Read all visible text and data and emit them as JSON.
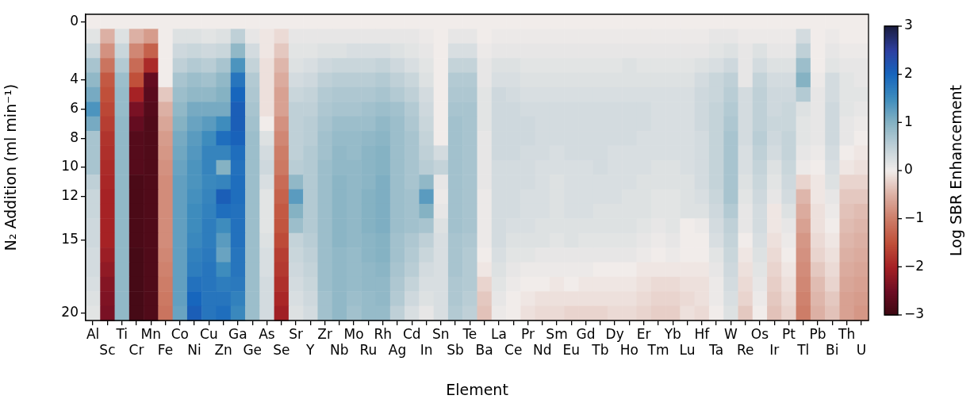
{
  "chart_data": {
    "type": "heatmap",
    "xlabel": "Element",
    "ylabel": "N₂ Addition (ml min⁻¹)",
    "clabel": "Log SBR Enhancement",
    "categories": [
      "Al",
      "Sc",
      "Ti",
      "Cr",
      "Mn",
      "Fe",
      "Co",
      "Ni",
      "Cu",
      "Zn",
      "Ga",
      "Ge",
      "As",
      "Se",
      "Sr",
      "Y",
      "Zr",
      "Nb",
      "Mo",
      "Ru",
      "Rh",
      "Ag",
      "Cd",
      "In",
      "Sn",
      "Sb",
      "Te",
      "Ba",
      "La",
      "Ce",
      "Pr",
      "Nd",
      "Sm",
      "Eu",
      "Gd",
      "Tb",
      "Dy",
      "Ho",
      "Er",
      "Tm",
      "Yb",
      "Lu",
      "Hf",
      "Ta",
      "W",
      "Re",
      "Os",
      "Ir",
      "Pt",
      "Tl",
      "Pb",
      "Bi",
      "Th",
      "U"
    ],
    "y_categories": [
      "0",
      null,
      null,
      null,
      "4",
      null,
      "6",
      null,
      "8",
      null,
      "10",
      null,
      "12",
      null,
      null,
      "15",
      null,
      null,
      null,
      null,
      "20"
    ],
    "clim": [
      -3,
      3
    ],
    "cticks": [
      -3,
      -2,
      -1,
      0,
      1,
      2,
      3
    ],
    "cells": [
      [
        0,
        0,
        0,
        0,
        0,
        0,
        0,
        0,
        0,
        0,
        0,
        0,
        0,
        0,
        0,
        0,
        0,
        0,
        0,
        0,
        0,
        0,
        0,
        0,
        0,
        0,
        0,
        0,
        0,
        0,
        0,
        0,
        0,
        0,
        0,
        0,
        0,
        0,
        0,
        0,
        0,
        0,
        0,
        0,
        0,
        0,
        0,
        0,
        0,
        0,
        0,
        0,
        0,
        0
      ],
      [
        0.15,
        -0.5,
        0.2,
        -0.5,
        -0.7,
        0,
        0.2,
        0.2,
        0.15,
        0.2,
        0.5,
        0.1,
        -0.05,
        -0.15,
        0.1,
        0.1,
        0.1,
        0.1,
        0.1,
        0.1,
        0.1,
        0.1,
        0.1,
        0.05,
        0,
        0.1,
        0.1,
        0,
        0.05,
        0.05,
        0.05,
        0.05,
        0.05,
        0.05,
        0.05,
        0.05,
        0.05,
        0.05,
        0.05,
        0.05,
        0.05,
        0.05,
        0.05,
        0.1,
        0.1,
        0.05,
        0.05,
        0.05,
        0.05,
        0.3,
        0,
        0.05,
        0,
        0
      ],
      [
        0.4,
        -0.8,
        0.4,
        -0.9,
        -1.3,
        0,
        0.35,
        0.4,
        0.35,
        0.4,
        0.9,
        0.3,
        -0.05,
        -0.3,
        0.15,
        0.15,
        0.2,
        0.2,
        0.25,
        0.25,
        0.25,
        0.2,
        0.15,
        0.1,
        0,
        0.25,
        0.25,
        0.05,
        0.1,
        0.1,
        0.1,
        0.1,
        0.1,
        0.1,
        0.1,
        0.1,
        0.1,
        0.1,
        0.1,
        0.1,
        0.1,
        0.1,
        0.1,
        0.15,
        0.2,
        0.1,
        0.2,
        0.1,
        0.1,
        0.5,
        0,
        0.1,
        0.05,
        0.05
      ],
      [
        0.7,
        -1.1,
        0.6,
        -1.2,
        -1.9,
        0,
        0.5,
        0.6,
        0.55,
        0.7,
        1.4,
        0.45,
        -0.1,
        -0.45,
        0.2,
        0.25,
        0.35,
        0.4,
        0.4,
        0.4,
        0.45,
        0.35,
        0.25,
        0.15,
        0,
        0.45,
        0.45,
        0.1,
        0.2,
        0.2,
        0.15,
        0.15,
        0.15,
        0.15,
        0.15,
        0.15,
        0.15,
        0.2,
        0.15,
        0.15,
        0.15,
        0.15,
        0.2,
        0.25,
        0.35,
        0.1,
        0.3,
        0.2,
        0.2,
        0.8,
        0,
        0.15,
        0.1,
        0.1
      ],
      [
        0.9,
        -1.4,
        0.8,
        -1.5,
        -2.6,
        0,
        0.7,
        0.8,
        0.75,
        0.9,
        1.8,
        0.6,
        -0.1,
        -0.55,
        0.3,
        0.35,
        0.5,
        0.55,
        0.55,
        0.55,
        0.6,
        0.5,
        0.4,
        0.2,
        0,
        0.6,
        0.6,
        0.1,
        0.25,
        0.25,
        0.2,
        0.2,
        0.2,
        0.2,
        0.2,
        0.2,
        0.2,
        0.2,
        0.2,
        0.2,
        0.2,
        0.2,
        0.3,
        0.4,
        0.5,
        0.1,
        0.45,
        0.3,
        0.3,
        1,
        0.05,
        0.3,
        0.15,
        0.1
      ],
      [
        1.1,
        -1.5,
        0.85,
        -2,
        -2.7,
        -0.3,
        0.8,
        0.9,
        0.9,
        1,
        2,
        0.65,
        -0.1,
        -0.65,
        0.4,
        0.45,
        0.6,
        0.65,
        0.65,
        0.65,
        0.7,
        0.6,
        0.5,
        0.3,
        0,
        0.65,
        0.65,
        0.15,
        0.35,
        0.3,
        0.25,
        0.25,
        0.25,
        0.25,
        0.25,
        0.25,
        0.25,
        0.25,
        0.25,
        0.25,
        0.25,
        0.25,
        0.35,
        0.4,
        0.55,
        0.3,
        0.5,
        0.35,
        0.35,
        0.6,
        0.1,
        0.3,
        0.15,
        0.15
      ],
      [
        1.4,
        -1.6,
        0.85,
        -2.4,
        -2.75,
        -0.5,
        0.9,
        1.1,
        1.1,
        1.1,
        2.1,
        0.7,
        -0.1,
        -0.65,
        0.5,
        0.5,
        0.65,
        0.7,
        0.7,
        0.75,
        0.8,
        0.75,
        0.6,
        0.35,
        0,
        0.7,
        0.7,
        0.15,
        0.35,
        0.35,
        0.3,
        0.3,
        0.3,
        0.3,
        0.3,
        0.3,
        0.3,
        0.3,
        0.3,
        0.25,
        0.25,
        0.25,
        0.35,
        0.45,
        0.6,
        0.3,
        0.5,
        0.35,
        0.4,
        0.2,
        0.1,
        0.35,
        0.15,
        0.1
      ],
      [
        1.1,
        -1.7,
        0.9,
        -2.6,
        -2.8,
        -0.6,
        1,
        1.2,
        1.3,
        1.5,
        2.1,
        0.75,
        0,
        -0.8,
        0.5,
        0.55,
        0.7,
        0.8,
        0.8,
        0.8,
        0.9,
        0.8,
        0.65,
        0.4,
        0,
        0.75,
        0.7,
        0.15,
        0.35,
        0.35,
        0.35,
        0.3,
        0.3,
        0.3,
        0.3,
        0.3,
        0.3,
        0.3,
        0.3,
        0.25,
        0.25,
        0.25,
        0.35,
        0.45,
        0.65,
        0.3,
        0.5,
        0.4,
        0.4,
        0.15,
        0.1,
        0.35,
        0.1,
        0.05
      ],
      [
        0.7,
        -1.8,
        0.9,
        -2.75,
        -2.8,
        -0.7,
        1.1,
        1.3,
        1.5,
        1.9,
        2.05,
        0.8,
        0.2,
        -0.9,
        0.5,
        0.55,
        0.75,
        0.85,
        0.85,
        0.9,
        0.95,
        0.8,
        0.7,
        0.45,
        0,
        0.75,
        0.7,
        0.1,
        0.35,
        0.35,
        0.35,
        0.3,
        0.3,
        0.3,
        0.3,
        0.3,
        0.3,
        0.3,
        0.25,
        0.25,
        0.25,
        0.25,
        0.3,
        0.45,
        0.7,
        0.3,
        0.55,
        0.35,
        0.45,
        0.15,
        0.1,
        0.35,
        0.1,
        0
      ],
      [
        0.7,
        -1.85,
        0.9,
        -2.75,
        -2.8,
        -0.75,
        1.15,
        1.35,
        1.6,
        1.6,
        1.9,
        0.8,
        0.3,
        -1,
        0.5,
        0.6,
        0.75,
        0.9,
        0.85,
        0.95,
        1,
        0.8,
        0.7,
        0.5,
        0.3,
        0.75,
        0.7,
        0.1,
        0.35,
        0.35,
        0.3,
        0.3,
        0.25,
        0.3,
        0.3,
        0.3,
        0.25,
        0.25,
        0.25,
        0.25,
        0.25,
        0.25,
        0.3,
        0.45,
        0.7,
        0.25,
        0.5,
        0.3,
        0.45,
        0.1,
        0.05,
        0.3,
        0,
        -0.05
      ],
      [
        0.7,
        -1.9,
        0.9,
        -2.75,
        -2.8,
        -0.8,
        1.2,
        1.4,
        1.6,
        1,
        1.85,
        0.8,
        0.35,
        -1.05,
        0.55,
        0.6,
        0.8,
        0.9,
        0.9,
        0.95,
        1,
        0.8,
        0.7,
        0.55,
        0.45,
        0.75,
        0.7,
        0.1,
        0.3,
        0.3,
        0.3,
        0.25,
        0.25,
        0.25,
        0.25,
        0.3,
        0.25,
        0.25,
        0.25,
        0.2,
        0.2,
        0.25,
        0.3,
        0.45,
        0.7,
        0.25,
        0.45,
        0.2,
        0.4,
        0.05,
        0,
        0.25,
        -0.05,
        -0.1
      ],
      [
        0.5,
        -1.95,
        0.9,
        -2.85,
        -2.8,
        -0.85,
        1.25,
        1.4,
        1.55,
        1.6,
        1.9,
        0.8,
        0.25,
        -1.2,
        0.9,
        0.6,
        0.8,
        0.95,
        0.9,
        0.95,
        1.05,
        0.8,
        0.7,
        0.9,
        0.1,
        0.75,
        0.7,
        0.1,
        0.3,
        0.3,
        0.3,
        0.25,
        0.2,
        0.25,
        0.25,
        0.25,
        0.25,
        0.25,
        0.2,
        0.2,
        0.2,
        0.2,
        0.3,
        0.45,
        0.7,
        0.2,
        0.4,
        0.15,
        0.35,
        -0.2,
        -0.05,
        0.2,
        -0.2,
        -0.2
      ],
      [
        0.4,
        -2,
        0.9,
        -2.85,
        -2.8,
        -0.85,
        1.25,
        1.45,
        1.6,
        2.1,
        1.9,
        0.8,
        0.15,
        -1.3,
        1.3,
        0.6,
        0.8,
        0.95,
        0.9,
        1,
        1.05,
        0.8,
        0.75,
        1.3,
        0.05,
        0.75,
        0.7,
        0.05,
        0.3,
        0.3,
        0.25,
        0.25,
        0.2,
        0.25,
        0.25,
        0.25,
        0.25,
        0.2,
        0.2,
        0.15,
        0.15,
        0.2,
        0.25,
        0.4,
        0.7,
        0.15,
        0.35,
        0.1,
        0.3,
        -0.45,
        -0.05,
        0.1,
        -0.3,
        -0.3
      ],
      [
        0.4,
        -2,
        0.9,
        -2.85,
        -2.8,
        -0.85,
        1.25,
        1.5,
        1.65,
        1.9,
        1.85,
        0.8,
        0.15,
        -1.4,
        1,
        0.6,
        0.8,
        0.95,
        0.9,
        1,
        1.05,
        0.8,
        0.75,
        1,
        0.1,
        0.75,
        0.7,
        0.05,
        0.3,
        0.3,
        0.25,
        0.25,
        0.2,
        0.25,
        0.25,
        0.2,
        0.2,
        0.2,
        0.2,
        0.15,
        0.15,
        0.2,
        0.2,
        0.35,
        0.6,
        0.1,
        0.3,
        -0.05,
        0.2,
        -0.55,
        -0.1,
        0.05,
        -0.35,
        -0.4
      ],
      [
        0.35,
        -2,
        0.9,
        -2.85,
        -2.8,
        -0.85,
        1.25,
        1.5,
        1.7,
        1.5,
        1.85,
        0.8,
        0.15,
        -1.45,
        0.8,
        0.6,
        0.8,
        0.95,
        0.9,
        1,
        1.05,
        0.8,
        0.75,
        0.7,
        0.2,
        0.75,
        0.7,
        0.05,
        0.3,
        0.25,
        0.25,
        0.2,
        0.2,
        0.2,
        0.2,
        0.2,
        0.2,
        0.2,
        0.15,
        0.1,
        0.15,
        0,
        0.05,
        0.3,
        0.5,
        0.1,
        0.3,
        -0.05,
        0.1,
        -0.65,
        -0.1,
        0,
        -0.4,
        -0.45
      ],
      [
        0.35,
        -2,
        0.9,
        -2.85,
        -2.8,
        -0.85,
        1.25,
        1.55,
        1.7,
        1.3,
        1.85,
        0.8,
        0.2,
        -1.55,
        0.45,
        0.55,
        0.8,
        0.95,
        0.9,
        0.95,
        1,
        0.75,
        0.65,
        0.5,
        0.25,
        0.7,
        0.65,
        0.05,
        0.3,
        0.2,
        0.2,
        0.2,
        0.15,
        0.2,
        0.15,
        0.15,
        0.15,
        0.15,
        0.1,
        0.05,
        0.1,
        0,
        0,
        0.25,
        0.45,
        0,
        0.25,
        -0.1,
        0.05,
        -0.75,
        -0.15,
        -0.05,
        -0.45,
        -0.5
      ],
      [
        0.3,
        -2.1,
        0.9,
        -2.9,
        -2.8,
        -0.9,
        1.25,
        1.65,
        1.75,
        1.2,
        1.8,
        0.8,
        0.25,
        -1.7,
        0.4,
        0.5,
        0.8,
        0.9,
        0.85,
        0.95,
        1,
        0.75,
        0.6,
        0.4,
        0.25,
        0.7,
        0.6,
        0,
        0.25,
        0.15,
        0.15,
        0.1,
        0.1,
        0.1,
        0.1,
        0.1,
        0.1,
        0.1,
        0.05,
        0,
        0.05,
        0,
        0,
        0.15,
        0.4,
        -0.05,
        0.2,
        -0.15,
        0,
        -0.8,
        -0.2,
        -0.1,
        -0.5,
        -0.55
      ],
      [
        0.3,
        -2.2,
        0.9,
        -2.9,
        -2.8,
        -0.95,
        1.25,
        1.7,
        1.8,
        1.5,
        1.8,
        0.8,
        0.25,
        -1.75,
        0.35,
        0.45,
        0.8,
        0.9,
        0.85,
        0.9,
        0.95,
        0.7,
        0.55,
        0.3,
        0.25,
        0.7,
        0.6,
        -0.05,
        0.2,
        0.1,
        0.05,
        0.05,
        0.05,
        0.05,
        0.05,
        0,
        0,
        0,
        -0.05,
        -0.05,
        -0.05,
        -0.05,
        -0.05,
        0.1,
        0.35,
        -0.1,
        0.15,
        -0.2,
        -0.05,
        -0.85,
        -0.3,
        -0.15,
        -0.55,
        -0.6
      ],
      [
        0.25,
        -2.3,
        0.9,
        -2.9,
        -2.8,
        -1,
        1.25,
        1.85,
        1.8,
        1.7,
        1.75,
        0.8,
        0.3,
        -1.85,
        0.3,
        0.4,
        0.8,
        0.9,
        0.85,
        0.9,
        0.9,
        0.65,
        0.45,
        0.25,
        0.25,
        0.65,
        0.6,
        -0.2,
        0.15,
        0.05,
        0,
        0,
        -0.05,
        0,
        -0.05,
        -0.05,
        -0.05,
        -0.05,
        -0.1,
        -0.15,
        -0.15,
        -0.1,
        -0.1,
        0.05,
        0.3,
        -0.15,
        0.1,
        -0.25,
        -0.1,
        -0.9,
        -0.4,
        -0.2,
        -0.6,
        -0.65
      ],
      [
        0.2,
        -2.35,
        0.9,
        -2.9,
        -2.8,
        -1.05,
        1.25,
        2,
        1.8,
        1.8,
        1.65,
        0.8,
        0.3,
        -1.95,
        0.25,
        0.35,
        0.75,
        0.9,
        0.8,
        0.85,
        0.9,
        0.6,
        0.35,
        0.2,
        0.25,
        0.65,
        0.55,
        -0.3,
        0.1,
        0,
        -0.05,
        -0.1,
        -0.1,
        -0.1,
        -0.1,
        -0.1,
        -0.1,
        -0.1,
        -0.15,
        -0.2,
        -0.2,
        -0.15,
        -0.1,
        0.05,
        0.25,
        -0.2,
        0.05,
        -0.3,
        -0.15,
        -0.95,
        -0.45,
        -0.3,
        -0.65,
        -0.7
      ],
      [
        0.15,
        -2.4,
        0.9,
        -2.9,
        -2.8,
        -1.1,
        1.2,
        2.1,
        1.8,
        1.9,
        1.55,
        0.8,
        0.3,
        -2.05,
        0.2,
        0.3,
        0.75,
        0.9,
        0.75,
        0.85,
        0.85,
        0.5,
        0.25,
        0.1,
        0.25,
        0.6,
        0.5,
        -0.35,
        0.05,
        0,
        -0.1,
        -0.15,
        -0.15,
        -0.2,
        -0.2,
        -0.2,
        -0.15,
        -0.15,
        -0.2,
        -0.25,
        -0.25,
        -0.1,
        -0.15,
        0,
        0.2,
        -0.3,
        0,
        -0.35,
        -0.2,
        -1,
        -0.5,
        -0.35,
        -0.65,
        -0.75
      ]
    ]
  }
}
